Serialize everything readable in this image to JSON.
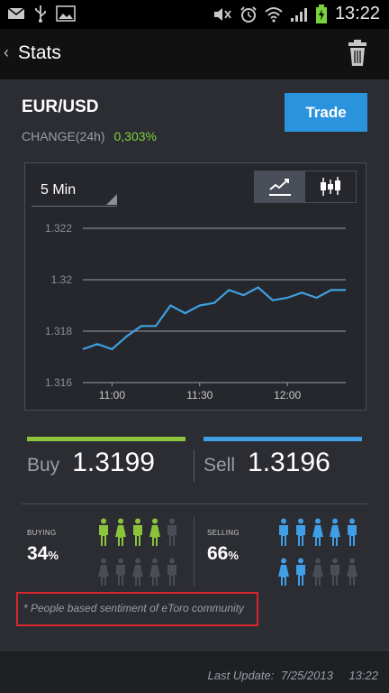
{
  "status_bar": {
    "time": "13:22",
    "left_icons": [
      "mail-icon",
      "usb-icon",
      "gallery-icon"
    ],
    "right_icons": [
      "mute-icon",
      "alarm-icon",
      "wifi-icon",
      "signal-icon",
      "battery-charging-icon"
    ]
  },
  "action_bar": {
    "title": "Stats"
  },
  "instrument": {
    "pair": "EUR/USD",
    "change_label": "CHANGE(24h)",
    "change_value": "0,303%",
    "trade_label": "Trade"
  },
  "chart_controls": {
    "interval": "5 Min",
    "types": [
      "line-chart-icon",
      "candlestick-icon"
    ],
    "active_type": "line-chart-icon"
  },
  "chart_data": {
    "type": "line",
    "title": "",
    "xlabel": "",
    "ylabel": "",
    "ylim": [
      1.316,
      1.322
    ],
    "yticks": [
      "1.322",
      "1.32",
      "1.318",
      "1.316"
    ],
    "xticks": [
      "11:00",
      "11:30",
      "12:00"
    ],
    "grid": true,
    "x": [
      "10:50",
      "10:55",
      "11:00",
      "11:05",
      "11:10",
      "11:15",
      "11:20",
      "11:25",
      "11:30",
      "11:35",
      "11:40",
      "11:45",
      "11:50",
      "11:55",
      "12:00",
      "12:05",
      "12:10",
      "12:15",
      "12:20"
    ],
    "series": [
      {
        "values": [
          1.3173,
          1.3175,
          1.3173,
          1.3178,
          1.3182,
          1.3182,
          1.319,
          1.3187,
          1.319,
          1.3191,
          1.3196,
          1.3194,
          1.3197,
          1.3192,
          1.3193,
          1.3195,
          1.3193,
          1.3196,
          1.3196
        ],
        "color": "#3fa0e0"
      }
    ]
  },
  "prices": {
    "buy_label": "Buy",
    "buy_value": "1.3199",
    "sell_label": "Sell",
    "sell_value": "1.3196",
    "buy_color": "#8bc43a",
    "sell_color": "#3f9ee6"
  },
  "sentiment": {
    "buying_label": "BUYING",
    "buying_pct": "34",
    "selling_label": "SELLING",
    "selling_pct": "66",
    "pct_sign": "%",
    "buying_people": [
      "male",
      "female",
      "male",
      "female",
      "male",
      "female",
      "male",
      "female",
      "female",
      "male"
    ],
    "buying_active": 4,
    "selling_people": [
      "male",
      "male",
      "female",
      "female",
      "male",
      "female",
      "male",
      "female",
      "male",
      "female"
    ],
    "selling_active": 7,
    "buy_color": "#8bc43a",
    "sell_color": "#3f9ee6",
    "inactive_color": "#4a4d56",
    "note": "* People based sentiment of eToro community"
  },
  "footer": {
    "label": "Last Update:",
    "date": "7/25/2013",
    "time": "13:22"
  }
}
